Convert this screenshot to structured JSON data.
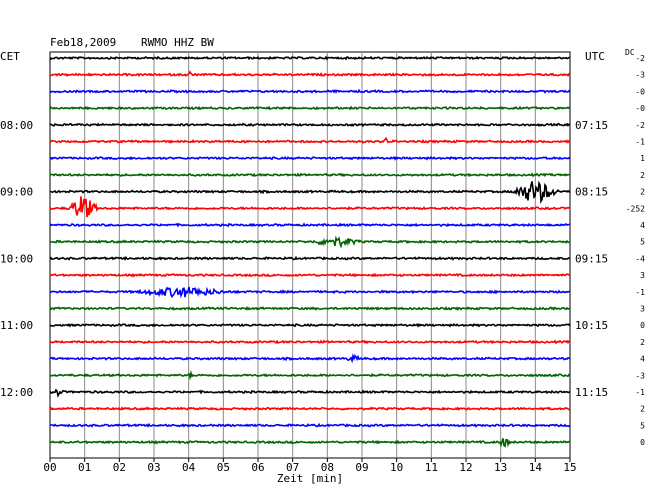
{
  "header": {
    "date": "Feb18,2009",
    "station": "RWMO HHZ BW",
    "left_timezone": "CET",
    "right_timezone": "UTC",
    "dc_label": "DC"
  },
  "colors": {
    "trace_cycle": [
      "#000000",
      "#ff0000",
      "#0000ff",
      "#006400"
    ],
    "grid": "#000000",
    "background": "#ffffff"
  },
  "chart_data": {
    "type": "line",
    "subtype": "helicorder",
    "xlabel": "Zeit [min]",
    "xlim": [
      0,
      15
    ],
    "x_ticks": [
      "00",
      "01",
      "02",
      "03",
      "04",
      "05",
      "06",
      "07",
      "08",
      "09",
      "10",
      "11",
      "12",
      "13",
      "14",
      "15"
    ],
    "grid": true,
    "row_minutes": 15,
    "left_time_labels": [
      {
        "row": 4,
        "label": "08:00"
      },
      {
        "row": 8,
        "label": "09:00"
      },
      {
        "row": 12,
        "label": "10:00"
      },
      {
        "row": 16,
        "label": "11:00"
      },
      {
        "row": 20,
        "label": "12:00"
      }
    ],
    "right_time_labels": [
      {
        "row": 4,
        "label": "07:15"
      },
      {
        "row": 8,
        "label": "08:15"
      },
      {
        "row": 12,
        "label": "09:15"
      },
      {
        "row": 16,
        "label": "10:15"
      },
      {
        "row": 20,
        "label": "11:15"
      }
    ],
    "dc_offsets": [
      "-2",
      "-3",
      "-0",
      "-0",
      "-2",
      "-1",
      "1",
      "2",
      "2",
      "-252",
      "4",
      "5",
      "-4",
      "3",
      "-1",
      "3",
      "0",
      "2",
      "4",
      "-3",
      "-1",
      "2",
      "5",
      "0"
    ],
    "events": [
      {
        "row": 1,
        "start": 3.9,
        "end": 4.2,
        "amplitude": 0.12
      },
      {
        "row": 5,
        "start": 9.6,
        "end": 9.8,
        "amplitude": 0.12
      },
      {
        "row": 8,
        "start": 13.3,
        "end": 14.7,
        "amplitude": 0.5
      },
      {
        "row": 9,
        "start": 0.5,
        "end": 1.4,
        "amplitude": 0.55
      },
      {
        "row": 11,
        "start": 7.5,
        "end": 9.0,
        "amplitude": 0.18
      },
      {
        "row": 14,
        "start": 2.4,
        "end": 5.2,
        "amplitude": 0.2
      },
      {
        "row": 18,
        "start": 8.5,
        "end": 9.0,
        "amplitude": 0.1
      },
      {
        "row": 19,
        "start": 4.0,
        "end": 4.1,
        "amplitude": 0.15
      },
      {
        "row": 20,
        "start": 0.1,
        "end": 0.4,
        "amplitude": 0.18
      },
      {
        "row": 23,
        "start": 12.9,
        "end": 13.3,
        "amplitude": 0.18
      }
    ]
  }
}
